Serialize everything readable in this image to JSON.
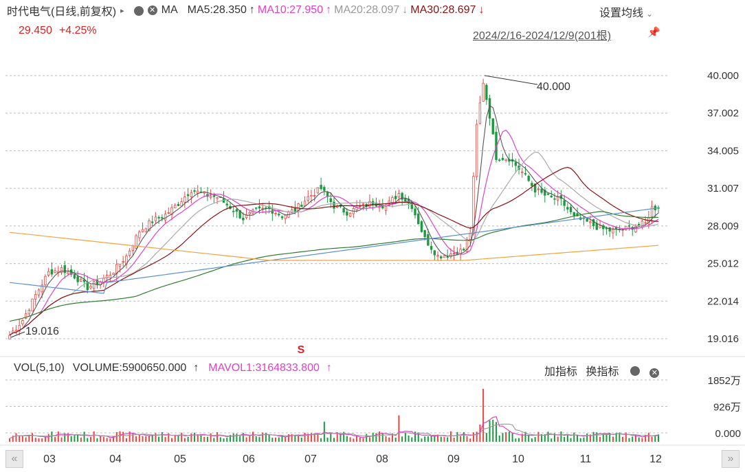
{
  "header": {
    "stock_name": "时代电气(日线,前复权)",
    "arrow_glyph": "▸",
    "ma_label": "MA",
    "ma5": "MA5:28.350",
    "ma10": "MA10:27.950",
    "ma20": "MA20:28.097",
    "ma30": "MA30:28.697",
    "up_arrow": "↑",
    "down_arrow": "↓",
    "settings_label": "设置均线",
    "price": "29.450",
    "change": "+4.25%",
    "date_range": "2024/2/16-2024/12/9(201根)"
  },
  "volume_header": {
    "vol_label": "VOL(5,10)",
    "volume": "VOLUME:5900650.000",
    "mavol1": "MAVOL1:3164833.800",
    "arrow": "↑",
    "add_indicator": "加指标",
    "switch_indicator": "换指标"
  },
  "colors": {
    "up": "#e8463e",
    "down": "#1c9a3f",
    "ma5": "#555555",
    "ma10": "#e040c8",
    "ma20": "#aaaaaa",
    "ma30": "#8a1010",
    "ma60": "#2e7d2e",
    "ma120": "#5b8fd6",
    "ma250": "#f2a33a"
  },
  "chart_data": [
    {
      "type": "candlestick",
      "y_ticks": [
        "40.000",
        "37.002",
        "34.005",
        "31.007",
        "28.009",
        "25.012",
        "22.014",
        "19.016"
      ],
      "ylim": [
        19.016,
        40.0
      ],
      "x_ticks": [
        "03",
        "04",
        "05",
        "06",
        "07",
        "08",
        "09",
        "10",
        "11",
        "12"
      ],
      "annotations": {
        "high": "40.000",
        "low": "19.016",
        "marker": "S"
      },
      "close_path": [
        [
          0,
          19.3
        ],
        [
          4,
          20.5
        ],
        [
          8,
          22.5
        ],
        [
          12,
          24.3
        ],
        [
          16,
          24.6
        ],
        [
          20,
          24.0
        ],
        [
          24,
          23.1
        ],
        [
          28,
          23.6
        ],
        [
          32,
          24.4
        ],
        [
          36,
          25.6
        ],
        [
          40,
          27.6
        ],
        [
          44,
          28.4
        ],
        [
          48,
          28.9
        ],
        [
          52,
          29.8
        ],
        [
          56,
          30.9
        ],
        [
          60,
          30.5
        ],
        [
          64,
          30.3
        ],
        [
          68,
          29.5
        ],
        [
          72,
          28.6
        ],
        [
          76,
          29.2
        ],
        [
          80,
          29.4
        ],
        [
          84,
          28.8
        ],
        [
          88,
          29.3
        ],
        [
          92,
          30.3
        ],
        [
          96,
          31.0
        ],
        [
          100,
          29.6
        ],
        [
          104,
          29.1
        ],
        [
          108,
          29.5
        ],
        [
          112,
          29.9
        ],
        [
          116,
          29.6
        ],
        [
          120,
          30.6
        ],
        [
          124,
          29.6
        ],
        [
          128,
          27.0
        ],
        [
          132,
          25.6
        ],
        [
          136,
          25.8
        ],
        [
          140,
          26.1
        ],
        [
          142,
          27.5
        ],
        [
          144,
          36.0
        ],
        [
          146,
          39.5
        ],
        [
          148,
          36.8
        ],
        [
          150,
          33.5
        ],
        [
          154,
          33.4
        ],
        [
          158,
          32.3
        ],
        [
          162,
          30.9
        ],
        [
          166,
          30.3
        ],
        [
          170,
          30.0
        ],
        [
          174,
          28.7
        ],
        [
          178,
          28.3
        ],
        [
          182,
          27.8
        ],
        [
          186,
          27.6
        ],
        [
          190,
          27.8
        ],
        [
          194,
          28.1
        ],
        [
          196,
          28.2
        ],
        [
          198,
          29.45
        ]
      ],
      "volume": {
        "y_ticks": [
          "1852万",
          "926万",
          "0.000"
        ],
        "max": 18520000
      }
    }
  ]
}
